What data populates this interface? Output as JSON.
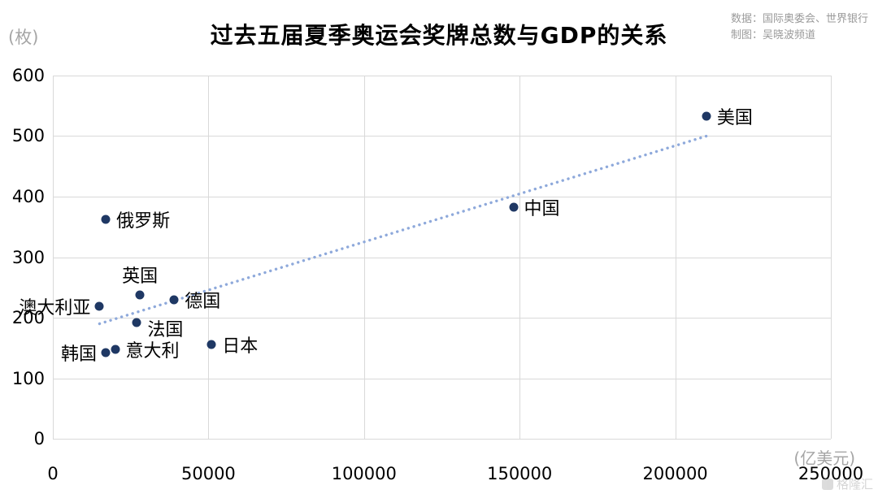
{
  "header": {
    "source_line1": "数据：国际奥委会、世界银行",
    "source_line2": "制图：吴晓波频道"
  },
  "watermark": {
    "text": "格隆汇"
  },
  "chart_data": {
    "type": "scatter",
    "title": "过去五届夏季奥运会奖牌总数与GDP的关系",
    "x_unit": "(亿美元)",
    "y_unit": "(枚)",
    "xlim": [
      0,
      250000
    ],
    "ylim": [
      0,
      600
    ],
    "x_ticks": [
      0,
      50000,
      100000,
      150000,
      200000,
      250000
    ],
    "y_ticks": [
      0,
      100,
      200,
      300,
      400,
      500,
      600
    ],
    "grid": true,
    "legend": false,
    "points": [
      {
        "label": "美国",
        "x": 210000,
        "y": 533,
        "label_pos": "right"
      },
      {
        "label": "中国",
        "x": 148000,
        "y": 382,
        "label_pos": "right"
      },
      {
        "label": "俄罗斯",
        "x": 17000,
        "y": 362,
        "label_pos": "right"
      },
      {
        "label": "英国",
        "x": 28000,
        "y": 238,
        "label_pos": "top"
      },
      {
        "label": "德国",
        "x": 39000,
        "y": 230,
        "label_pos": "right"
      },
      {
        "label": "澳大利亚",
        "x": 15000,
        "y": 219,
        "label_pos": "left"
      },
      {
        "label": "法国",
        "x": 27000,
        "y": 192,
        "label_pos": "bottom-right"
      },
      {
        "label": "日本",
        "x": 51000,
        "y": 156,
        "label_pos": "right"
      },
      {
        "label": "意大利",
        "x": 20000,
        "y": 148,
        "label_pos": "right"
      },
      {
        "label": "韩国",
        "x": 17000,
        "y": 142,
        "label_pos": "left"
      }
    ],
    "trend_line": {
      "x1": 15000,
      "y1": 190,
      "x2": 210000,
      "y2": 500,
      "style": "dotted"
    },
    "colors": {
      "point": "#1f3864",
      "trend": "#8ea9db",
      "grid": "#d9d9d9"
    }
  }
}
